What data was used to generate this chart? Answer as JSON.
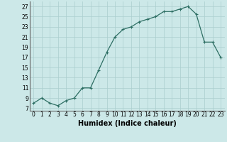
{
  "x": [
    0,
    1,
    2,
    3,
    4,
    5,
    6,
    7,
    8,
    9,
    10,
    11,
    12,
    13,
    14,
    15,
    16,
    17,
    18,
    19,
    20,
    21,
    22,
    23
  ],
  "y": [
    8,
    9,
    8,
    7.5,
    8.5,
    9,
    11,
    11,
    14.5,
    18,
    21,
    22.5,
    23,
    24,
    24.5,
    25,
    26,
    26,
    26.5,
    27,
    25.5,
    20,
    20,
    17
  ],
  "line_color": "#2d6e63",
  "marker": "+",
  "marker_size": 3,
  "background_color": "#cce8e8",
  "grid_color": "#aacece",
  "xlabel": "Humidex (Indice chaleur)",
  "xlabel_fontsize": 7,
  "ylabel_ticks": [
    7,
    9,
    11,
    13,
    15,
    17,
    19,
    21,
    23,
    25,
    27
  ],
  "xlim": [
    -0.5,
    23.5
  ],
  "ylim": [
    6.5,
    28
  ],
  "xtick_labels": [
    "0",
    "1",
    "2",
    "3",
    "4",
    "5",
    "6",
    "7",
    "8",
    "9",
    "10",
    "11",
    "12",
    "13",
    "14",
    "15",
    "16",
    "17",
    "18",
    "19",
    "20",
    "21",
    "22",
    "23"
  ],
  "tick_fontsize": 5.5,
  "lw": 0.9
}
